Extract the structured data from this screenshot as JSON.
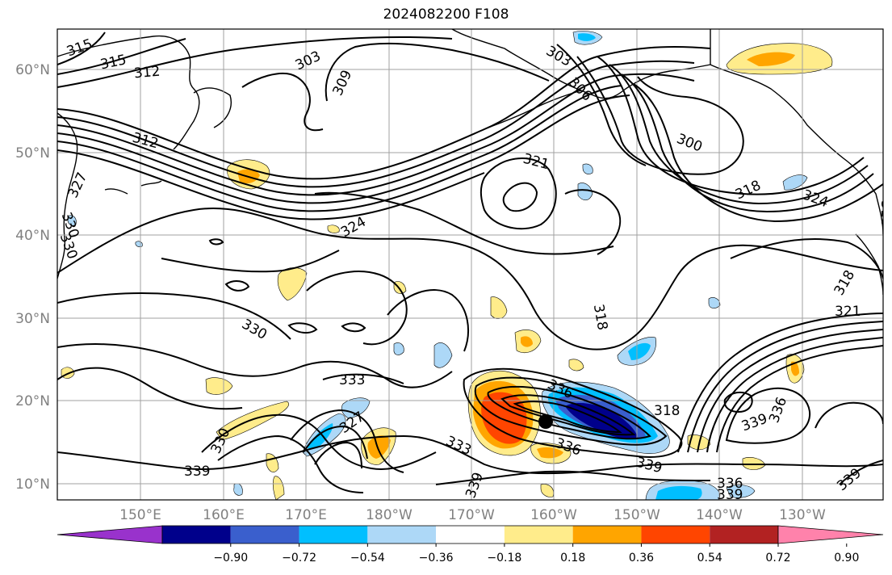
{
  "title": "2024082200 F108",
  "lat_labels": [
    "60°N",
    "50°N",
    "40°N",
    "30°N",
    "20°N",
    "10°N"
  ],
  "lon_labels": [
    "150°E",
    "160°E",
    "170°E",
    "180°W",
    "170°W",
    "160°W",
    "150°W",
    "140°W",
    "130°W"
  ],
  "contour_labels": [
    "315",
    "315",
    "312",
    "303",
    "309",
    "303",
    "306",
    "312",
    "300",
    "321",
    "318",
    "327",
    "330",
    "330",
    "324",
    "324",
    "318",
    "318",
    "321",
    "318",
    "330",
    "333",
    "327",
    "330",
    "339",
    "333",
    "336",
    "318",
    "339",
    "336",
    "339",
    "336",
    "339",
    "339",
    "339",
    "336"
  ],
  "colorbar": {
    "ticks": [
      "−0.90",
      "−0.72",
      "−0.54",
      "−0.36",
      "−0.18",
      "0.18",
      "0.36",
      "0.54",
      "0.72",
      "0.90"
    ],
    "colors": [
      "#9932cc",
      "#00008b",
      "#3a5fcd",
      "#00bfff",
      "#add8f7",
      "#ffffff",
      "#ffec8b",
      "#ffa500",
      "#ff4500",
      "#b22222",
      "#ff82ab"
    ]
  },
  "colors": {
    "contour": "#000000",
    "coast": "#000000",
    "grid": "#a0a0a0",
    "marker": "#000000"
  }
}
